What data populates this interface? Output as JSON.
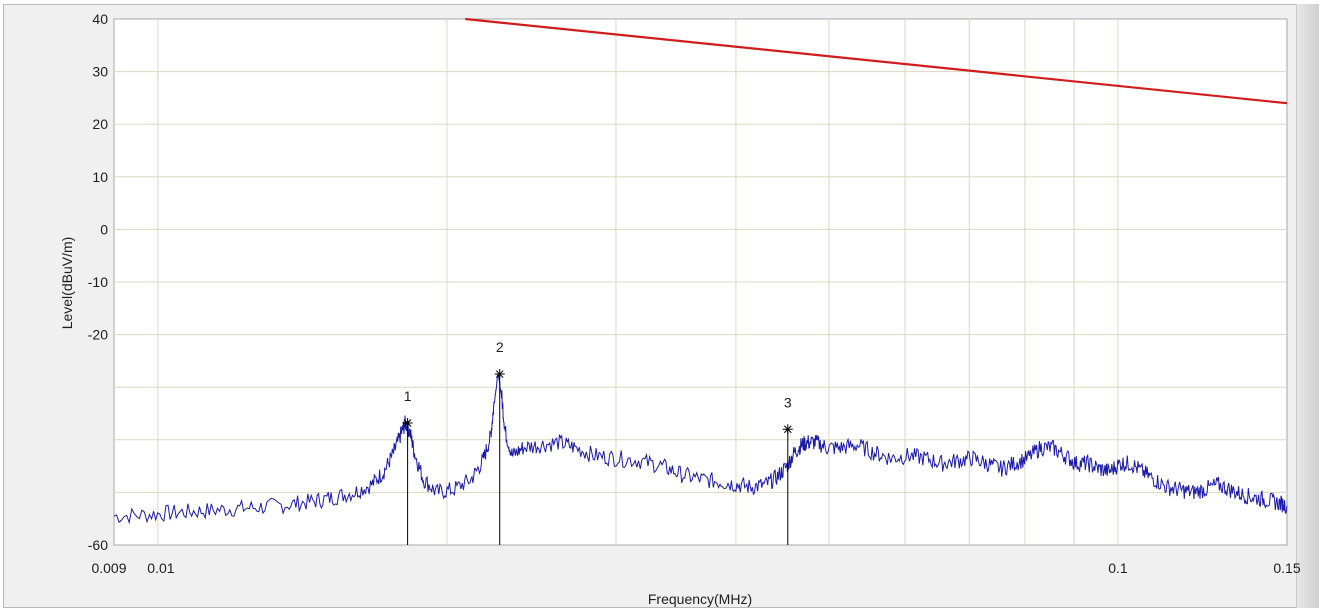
{
  "chart_data": {
    "type": "line",
    "xlabel": "Frequency(MHz)",
    "ylabel": "Level(dBuV/m)",
    "x_scale": "log",
    "xlim": [
      0.009,
      0.15
    ],
    "ylim": [
      -60,
      40
    ],
    "x_tick_labels": [
      "0.009",
      "0.01",
      "0.1",
      "0.15"
    ],
    "x_tick_values": [
      0.009,
      0.01,
      0.1,
      0.15
    ],
    "y_tick_values": [
      40,
      30,
      20,
      10,
      0,
      -10,
      -20,
      -60
    ],
    "y_tick_labels": [
      "40",
      "30",
      "20",
      "10",
      "0",
      "-10",
      "-20",
      "-60"
    ],
    "grid": true,
    "series": [
      {
        "role": "limit",
        "color": "#d01c1c",
        "x": [
          0.0209,
          0.15
        ],
        "y": [
          40,
          24
        ]
      },
      {
        "role": "measurement",
        "color": "#1a1aa8",
        "x": [
          0.009,
          0.0098,
          0.0105,
          0.0112,
          0.012,
          0.0128,
          0.0137,
          0.0145,
          0.0152,
          0.016,
          0.0167,
          0.0172,
          0.0176,
          0.0179,
          0.0181,
          0.0183,
          0.0185,
          0.0189,
          0.0195,
          0.0203,
          0.0212,
          0.0218,
          0.0222,
          0.0224,
          0.0226,
          0.0228,
          0.023,
          0.0234,
          0.024,
          0.025,
          0.0262,
          0.0272,
          0.0285,
          0.03,
          0.0318,
          0.0335,
          0.035,
          0.0368,
          0.0385,
          0.04,
          0.0415,
          0.043,
          0.0442,
          0.0452,
          0.046,
          0.0468,
          0.0475,
          0.0485,
          0.0498,
          0.0515,
          0.0535,
          0.0558,
          0.058,
          0.0605,
          0.063,
          0.0655,
          0.068,
          0.0705,
          0.073,
          0.0755,
          0.078,
          0.0805,
          0.083,
          0.0855,
          0.088,
          0.0905,
          0.093,
          0.0955,
          0.098,
          0.1005,
          0.103,
          0.106,
          0.109,
          0.1125,
          0.116,
          0.1195,
          0.123,
          0.127,
          0.131,
          0.135,
          0.139,
          0.143,
          0.147,
          0.15
        ],
        "y": [
          -54.5,
          -54.2,
          -53.8,
          -53.5,
          -53.1,
          -52.8,
          -52.3,
          -51.7,
          -51.0,
          -50.0,
          -48.5,
          -46.0,
          -42.5,
          -39.0,
          -36.8,
          -38.5,
          -42.5,
          -47.5,
          -50.0,
          -49.5,
          -47.5,
          -44.0,
          -39.5,
          -33.0,
          -27.5,
          -31.5,
          -38.5,
          -43.0,
          -41.5,
          -41.0,
          -40.5,
          -41.5,
          -43.0,
          -43.5,
          -44.0,
          -45.0,
          -46.5,
          -47.5,
          -48.0,
          -48.5,
          -49.0,
          -48.5,
          -47.0,
          -45.0,
          -42.5,
          -41.0,
          -40.5,
          -40.5,
          -41.5,
          -41.5,
          -41.0,
          -42.5,
          -43.5,
          -43.0,
          -43.5,
          -44.5,
          -44.0,
          -43.5,
          -44.5,
          -45.5,
          -44.5,
          -43.5,
          -41.5,
          -41.5,
          -43.0,
          -44.5,
          -44.5,
          -45.5,
          -46.0,
          -44.5,
          -44.5,
          -46.0,
          -47.5,
          -49.0,
          -49.5,
          -50.0,
          -49.5,
          -48.5,
          -49.5,
          -50.5,
          -51.0,
          -51.5,
          -52.0,
          -52.5
        ]
      }
    ],
    "markers": [
      {
        "label": "1",
        "x": 0.0182,
        "y": -36.8
      },
      {
        "label": "2",
        "x": 0.0227,
        "y": -27.5
      },
      {
        "label": "3",
        "x": 0.0453,
        "y": -38.0
      }
    ]
  }
}
